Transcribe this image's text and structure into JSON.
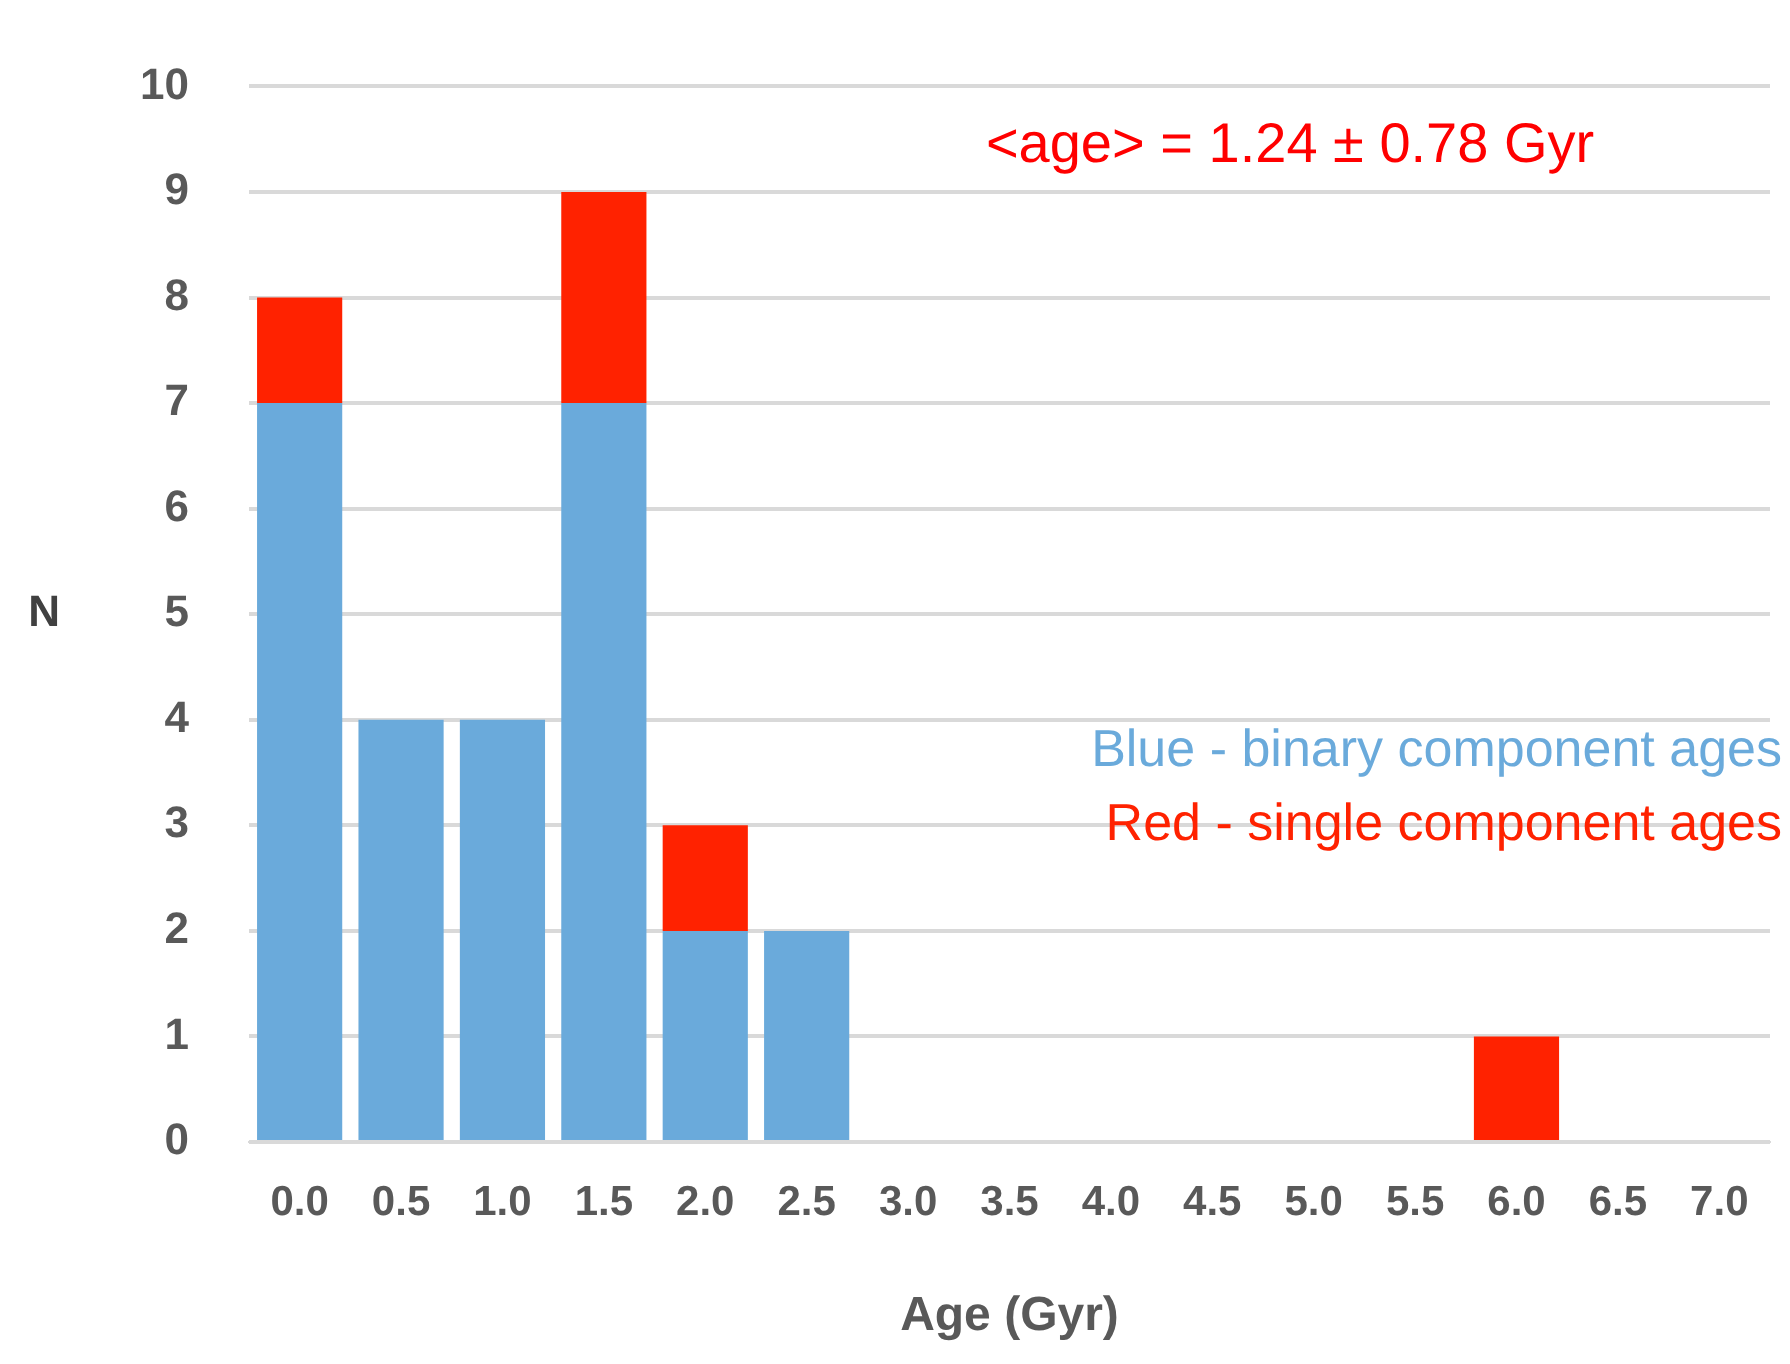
{
  "chart_data": {
    "type": "bar",
    "stacked": true,
    "xlabel": "Age (Gyr)",
    "ylabel": "N",
    "categories": [
      "0.0",
      "0.5",
      "1.0",
      "1.5",
      "2.0",
      "2.5",
      "3.0",
      "3.5",
      "4.0",
      "4.5",
      "5.0",
      "5.5",
      "6.0",
      "6.5",
      "7.0"
    ],
    "series": [
      {
        "name": "Blue - binary component ages",
        "color": "#6aaadb",
        "values": [
          7,
          4,
          4,
          7,
          2,
          2,
          0,
          0,
          0,
          0,
          0,
          0,
          0,
          0,
          0
        ]
      },
      {
        "name": "Red - single component ages",
        "color": "#ff2200",
        "values": [
          1,
          0,
          0,
          2,
          1,
          0,
          0,
          0,
          0,
          0,
          0,
          0,
          1,
          0,
          0
        ]
      }
    ],
    "ylim": [
      0,
      10
    ],
    "yticks": [
      0,
      1,
      2,
      3,
      4,
      5,
      6,
      7,
      8,
      9,
      10
    ],
    "grid": "y",
    "legend": "right",
    "annotations": [
      "<age> = 1.24 ± 0.78 Gyr"
    ]
  }
}
